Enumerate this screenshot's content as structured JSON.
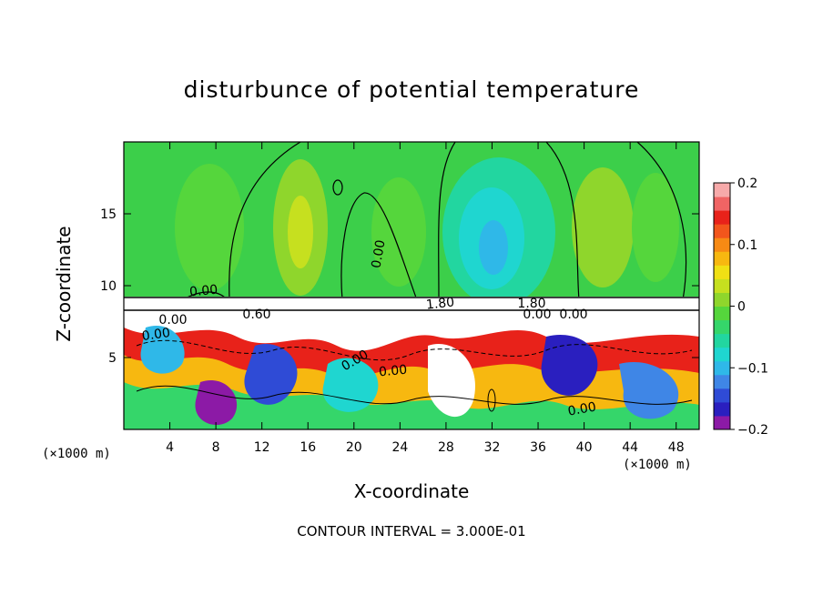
{
  "chart_data": {
    "type": "heatmap",
    "title": "disturbunce of potential temperature",
    "xlabel": "X-coordinate",
    "ylabel": "Z-coordinate",
    "x_unit_left": "(×1000 m)",
    "x_unit_right": "(×1000 m)",
    "x_ticks": [
      "4",
      "8",
      "12",
      "16",
      "20",
      "24",
      "28",
      "32",
      "36",
      "40",
      "44",
      "48"
    ],
    "x_tick_values": [
      4,
      8,
      12,
      16,
      20,
      24,
      28,
      32,
      36,
      40,
      44,
      48
    ],
    "y_ticks": [
      "5",
      "10",
      "15"
    ],
    "y_tick_values": [
      5,
      10,
      15
    ],
    "xlim": [
      0,
      50
    ],
    "ylim": [
      0,
      20
    ],
    "colorbar": {
      "ticks": [
        "0.2",
        "0.1",
        "0",
        "−0.1",
        "−0.2"
      ],
      "tick_values": [
        0.2,
        0.1,
        0,
        -0.1,
        -0.2
      ],
      "range": [
        -0.2,
        0.2
      ],
      "colors": [
        "#8c1aa6",
        "#2a1fbf",
        "#2f4bd6",
        "#3f86e6",
        "#2fb8e8",
        "#1fd6d0",
        "#22d6a0",
        "#35d66a",
        "#55d63c",
        "#8fd62c",
        "#c6e01f",
        "#f0e014",
        "#f7b810",
        "#f78a14",
        "#f2561c",
        "#e8221a",
        "#f06464",
        "#f7aaaa"
      ]
    },
    "contour_labels": [
      "0.00",
      "0.00",
      "0.00",
      "0.60",
      "0.00",
      "0.00",
      "1.80",
      "1.80",
      "0.00",
      "0.00",
      "0.00",
      "0.00"
    ],
    "contour_interval": "CONTOUR INTERVAL = 3.000E-01",
    "grid": false
  }
}
